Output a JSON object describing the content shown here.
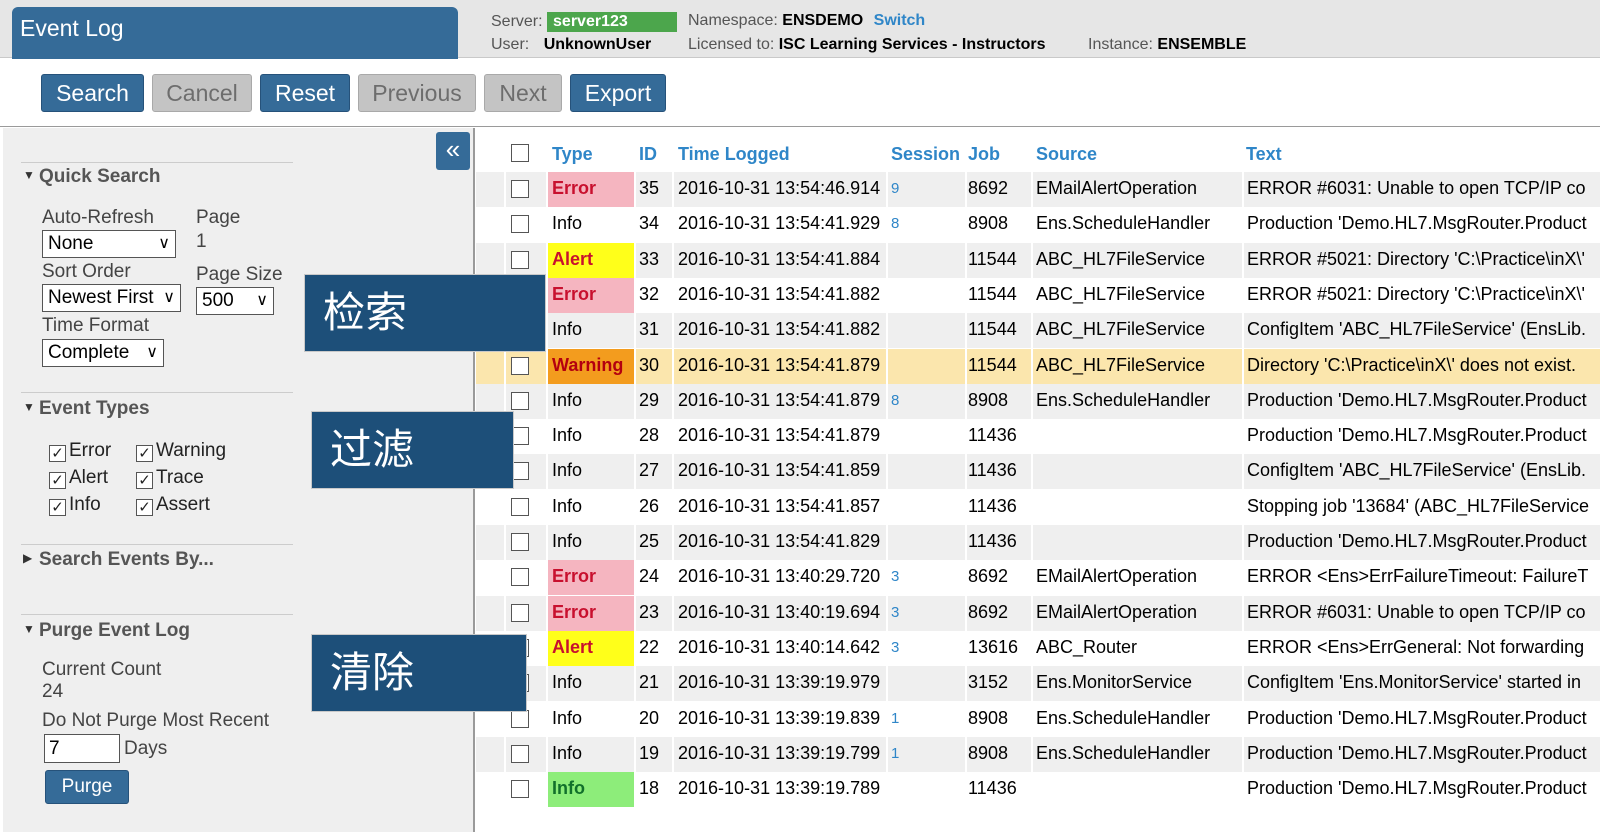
{
  "header": {
    "title": "Event Log",
    "server_label": "Server:",
    "server_value": "server123",
    "user_label": "User:",
    "user_value": "UnknownUser",
    "namespace_label": "Namespace:",
    "namespace_value": "ENSDEMO",
    "switch_label": "Switch",
    "licensed_label": "Licensed to:",
    "licensed_value": "ISC Learning Services - Instructors",
    "instance_label": "Instance:",
    "instance_value": "ENSEMBLE"
  },
  "toolbar": {
    "search": "Search",
    "cancel": "Cancel",
    "reset": "Reset",
    "previous": "Previous",
    "next": "Next",
    "export": "Export"
  },
  "sidebar": {
    "collapse_glyph": "«",
    "quick_search": {
      "title": "Quick Search",
      "auto_refresh_label": "Auto-Refresh",
      "auto_refresh_value": "None",
      "page_label": "Page",
      "page_value": "1",
      "sort_order_label": "Sort Order",
      "sort_order_value": "Newest First",
      "page_size_label": "Page Size",
      "page_size_value": "500",
      "time_format_label": "Time Format",
      "time_format_value": "Complete"
    },
    "event_types": {
      "title": "Event Types",
      "error": "Error",
      "warning": "Warning",
      "alert": "Alert",
      "trace": "Trace",
      "info": "Info",
      "assert": "Assert"
    },
    "search_events_by": "Search Events By...",
    "purge": {
      "title": "Purge Event Log",
      "current_count_label": "Current Count",
      "current_count_value": "24",
      "do_not_purge_label": "Do Not Purge Most Recent",
      "days_value": "7",
      "days_label": "Days",
      "purge_button": "Purge"
    }
  },
  "overlays": {
    "search_cn": "检索",
    "filter_cn": "过滤",
    "purge_cn": "清除"
  },
  "table": {
    "headers": {
      "type": "Type",
      "id": "ID",
      "time": "Time Logged",
      "session": "Session",
      "job": "Job",
      "source": "Source",
      "text": "Text"
    },
    "rows": [
      {
        "type": "Error",
        "id": "35",
        "time": "2016-10-31 13:54:46.914",
        "session": "9",
        "job": "8692",
        "source": "EMailAlertOperation",
        "text": "ERROR #6031: Unable to open TCP/IP co"
      },
      {
        "type": "Info",
        "id": "34",
        "time": "2016-10-31 13:54:41.929",
        "session": "8",
        "job": "8908",
        "source": "Ens.ScheduleHandler",
        "text": "Production 'Demo.HL7.MsgRouter.Product"
      },
      {
        "type": "Alert",
        "id": "33",
        "time": "2016-10-31 13:54:41.884",
        "session": "",
        "job": "11544",
        "source": "ABC_HL7FileService",
        "text": "ERROR #5021: Directory 'C:\\Practice\\inX\\'"
      },
      {
        "type": "Error",
        "id": "32",
        "time": "2016-10-31 13:54:41.882",
        "session": "",
        "job": "11544",
        "source": "ABC_HL7FileService",
        "text": "ERROR #5021: Directory 'C:\\Practice\\inX\\'"
      },
      {
        "type": "Info",
        "id": "31",
        "time": "2016-10-31 13:54:41.882",
        "session": "",
        "job": "11544",
        "source": "ABC_HL7FileService",
        "text": "ConfigItem 'ABC_HL7FileService' (EnsLib."
      },
      {
        "type": "Warning",
        "id": "30",
        "time": "2016-10-31 13:54:41.879",
        "session": "",
        "job": "11544",
        "source": "ABC_HL7FileService",
        "text": "Directory 'C:\\Practice\\inX\\' does not exist."
      },
      {
        "type": "Info",
        "id": "29",
        "time": "2016-10-31 13:54:41.879",
        "session": "8",
        "job": "8908",
        "source": "Ens.ScheduleHandler",
        "text": "Production 'Demo.HL7.MsgRouter.Product"
      },
      {
        "type": "Info",
        "id": "28",
        "time": "2016-10-31 13:54:41.879",
        "session": "",
        "job": "11436",
        "source": "",
        "text": "Production 'Demo.HL7.MsgRouter.Product"
      },
      {
        "type": "Info",
        "id": "27",
        "time": "2016-10-31 13:54:41.859",
        "session": "",
        "job": "11436",
        "source": "",
        "text": "ConfigItem 'ABC_HL7FileService' (EnsLib."
      },
      {
        "type": "Info",
        "id": "26",
        "time": "2016-10-31 13:54:41.857",
        "session": "",
        "job": "11436",
        "source": "",
        "text": "Stopping job '13684' (ABC_HL7FileService"
      },
      {
        "type": "Info",
        "id": "25",
        "time": "2016-10-31 13:54:41.829",
        "session": "",
        "job": "11436",
        "source": "",
        "text": "Production 'Demo.HL7.MsgRouter.Product"
      },
      {
        "type": "Error",
        "id": "24",
        "time": "2016-10-31 13:40:29.720",
        "session": "3",
        "job": "8692",
        "source": "EMailAlertOperation",
        "text": "ERROR <Ens>ErrFailureTimeout: FailureT"
      },
      {
        "type": "Error",
        "id": "23",
        "time": "2016-10-31 13:40:19.694",
        "session": "3",
        "job": "8692",
        "source": "EMailAlertOperation",
        "text": "ERROR #6031: Unable to open TCP/IP co"
      },
      {
        "type": "Alert",
        "id": "22",
        "time": "2016-10-31 13:40:14.642",
        "session": "3",
        "job": "13616",
        "source": "ABC_Router",
        "text": "ERROR <Ens>ErrGeneral: Not forwarding"
      },
      {
        "type": "Info",
        "id": "21",
        "time": "2016-10-31 13:39:19.979",
        "session": "",
        "job": "3152",
        "source": "Ens.MonitorService",
        "text": "ConfigItem 'Ens.MonitorService' started in"
      },
      {
        "type": "Info",
        "id": "20",
        "time": "2016-10-31 13:39:19.839",
        "session": "1",
        "job": "8908",
        "source": "Ens.ScheduleHandler",
        "text": "Production 'Demo.HL7.MsgRouter.Product"
      },
      {
        "type": "Info",
        "id": "19",
        "time": "2016-10-31 13:39:19.799",
        "session": "1",
        "job": "8908",
        "source": "Ens.ScheduleHandler",
        "text": "Production 'Demo.HL7.MsgRouter.Product"
      },
      {
        "type": "Info",
        "id": "18",
        "time": "2016-10-31 13:39:19.789",
        "session": "",
        "job": "11436",
        "source": "",
        "text": "Production 'Demo.HL7.MsgRouter.Product"
      }
    ]
  },
  "colors": {
    "primary": "#356b98",
    "link": "#2f86c8",
    "error_bg": "#f5b5c0",
    "alert_bg": "#ffff1a",
    "warning_bg": "#f39c1e",
    "warning_row_bg": "#fbe6ad",
    "info_highlight_bg": "#8ded7a",
    "server_badge": "#4ca64c"
  }
}
